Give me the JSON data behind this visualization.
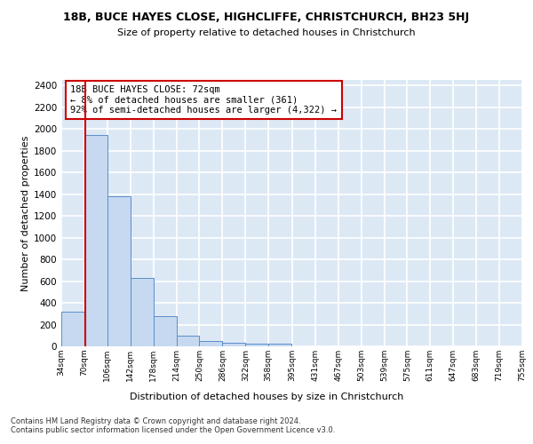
{
  "title1": "18B, BUCE HAYES CLOSE, HIGHCLIFFE, CHRISTCHURCH, BH23 5HJ",
  "title2": "Size of property relative to detached houses in Christchurch",
  "xlabel": "Distribution of detached houses by size in Christchurch",
  "ylabel": "Number of detached properties",
  "bin_edges": [
    34,
    70,
    106,
    142,
    178,
    214,
    250,
    286,
    322,
    358,
    395,
    431,
    467,
    503,
    539,
    575,
    611,
    647,
    683,
    719,
    755
  ],
  "bar_heights": [
    320,
    1940,
    1380,
    630,
    280,
    100,
    50,
    35,
    28,
    22,
    0,
    0,
    0,
    0,
    0,
    0,
    0,
    0,
    0,
    0
  ],
  "bar_color": "#c6d9f0",
  "bar_edge_color": "#5b8dc8",
  "property_line_x": 72,
  "property_line_color": "#cc0000",
  "annotation_text": "18B BUCE HAYES CLOSE: 72sqm\n← 8% of detached houses are smaller (361)\n92% of semi-detached houses are larger (4,322) →",
  "annotation_box_color": "#ffffff",
  "annotation_box_edge_color": "#cc0000",
  "ylim": [
    0,
    2450
  ],
  "yticks": [
    0,
    200,
    400,
    600,
    800,
    1000,
    1200,
    1400,
    1600,
    1800,
    2000,
    2200,
    2400
  ],
  "background_color": "#dde8f5",
  "grid_color": "#ffffff",
  "footer_text": "Contains HM Land Registry data © Crown copyright and database right 2024.\nContains public sector information licensed under the Open Government Licence v3.0.",
  "tick_labels": [
    "34sqm",
    "70sqm",
    "106sqm",
    "142sqm",
    "178sqm",
    "214sqm",
    "250sqm",
    "286sqm",
    "322sqm",
    "358sqm",
    "395sqm",
    "431sqm",
    "467sqm",
    "503sqm",
    "539sqm",
    "575sqm",
    "611sqm",
    "647sqm",
    "683sqm",
    "719sqm",
    "755sqm"
  ]
}
